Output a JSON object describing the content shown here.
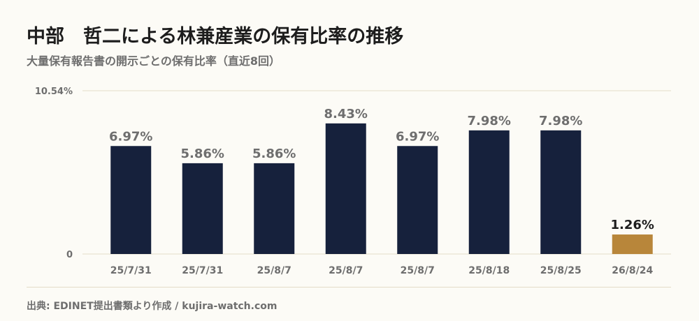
{
  "title": "中部　哲二による林兼産業の保有比率の推移",
  "subtitle": "大量保有報告書の開示ごとの保有比率（直近8回）",
  "source": "出典: EDINET提出書類より作成 / kujira-watch.com",
  "colors": {
    "bar": "#16213c",
    "highlight": "#b8863a",
    "grid": "#e3dcc8",
    "label": "#6e6e6e",
    "highlight_label": "#1d1d1d"
  },
  "chart_data": {
    "type": "bar",
    "categories": [
      "25/7/31",
      "25/7/31",
      "25/8/7",
      "25/8/7",
      "25/8/7",
      "25/8/18",
      "25/8/25",
      "26/8/24"
    ],
    "values": [
      6.97,
      5.86,
      5.86,
      8.43,
      6.97,
      7.98,
      7.98,
      1.26
    ],
    "value_labels": [
      "6.97%",
      "5.86%",
      "5.86%",
      "8.43%",
      "6.97%",
      "7.98%",
      "7.98%",
      "1.26%"
    ],
    "highlight_index": 7,
    "ylim": [
      0,
      10.54
    ],
    "ytick_labels": [
      "0",
      "10.54%"
    ],
    "title": "中部　哲二による林兼産業の保有比率の推移",
    "xlabel": "",
    "ylabel": "",
    "grid": true,
    "legend": "none"
  }
}
